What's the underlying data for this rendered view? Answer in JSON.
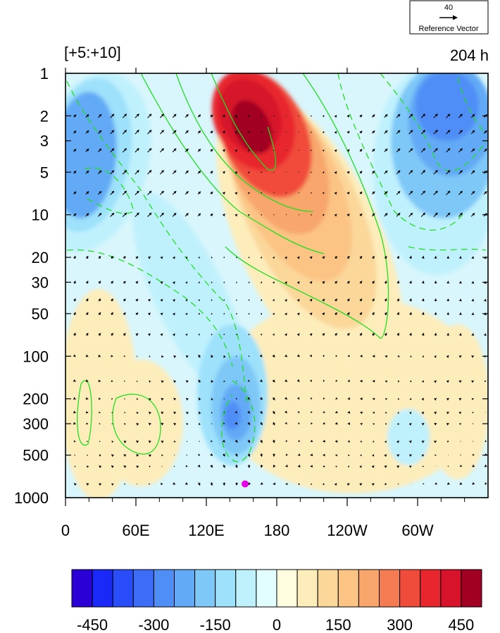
{
  "header": {
    "left_label": "[+5:+10]",
    "right_label": "204 h"
  },
  "reference_vector": {
    "value": "40",
    "label": "Reference Vector"
  },
  "chart_data": {
    "type": "heatmap",
    "title": "",
    "xlabel": "",
    "ylabel": "",
    "x_ticks": [
      {
        "lon": 0,
        "label": "0"
      },
      {
        "lon": 60,
        "label": "60E"
      },
      {
        "lon": 120,
        "label": "120E"
      },
      {
        "lon": 180,
        "label": "180"
      },
      {
        "lon": 240,
        "label": "120W"
      },
      {
        "lon": 300,
        "label": "60W"
      }
    ],
    "xlim": [
      0,
      360
    ],
    "y_ticks": [
      {
        "p": 1,
        "label": "1"
      },
      {
        "p": 2,
        "label": "2"
      },
      {
        "p": 3,
        "label": "3"
      },
      {
        "p": 5,
        "label": "5"
      },
      {
        "p": 10,
        "label": "10"
      },
      {
        "p": 20,
        "label": "20"
      },
      {
        "p": 30,
        "label": "30"
      },
      {
        "p": 50,
        "label": "50"
      },
      {
        "p": 100,
        "label": "100"
      },
      {
        "p": 200,
        "label": "200"
      },
      {
        "p": 300,
        "label": "300"
      },
      {
        "p": 500,
        "label": "500"
      },
      {
        "p": 1000,
        "label": "1000"
      }
    ],
    "ylim": [
      1000,
      1
    ],
    "y_scale": "log",
    "colorbar": {
      "colors": [
        "#2b00d6",
        "#1a29f7",
        "#2a4dfa",
        "#3d6cf7",
        "#4f8ef6",
        "#62aaf5",
        "#7ec8f8",
        "#9de1fb",
        "#bff1fd",
        "#e2fdfe",
        "#fefde0",
        "#fdedbb",
        "#fbd79a",
        "#fbc485",
        "#f8a66c",
        "#f57b52",
        "#f04c3b",
        "#e8262e",
        "#d6132a",
        "#a10023"
      ],
      "labels": [
        "-450",
        "-300",
        "-150",
        "0",
        "150",
        "300",
        "450"
      ],
      "label_values": [
        -450,
        -300,
        -150,
        0,
        150,
        300,
        450
      ],
      "levels": [
        -500,
        -450,
        -400,
        -350,
        -300,
        -250,
        -200,
        -150,
        -100,
        -50,
        0,
        50,
        100,
        150,
        200,
        250,
        300,
        350,
        400,
        450,
        500
      ]
    },
    "field_features": [
      {
        "name": "stratospheric positive center",
        "lon": 165,
        "p": 4,
        "value": 480
      },
      {
        "name": "stratospheric negative center",
        "lon": 320,
        "p": 2,
        "value": -320
      },
      {
        "name": "western negative center",
        "lon": 15,
        "p": 5,
        "value": -260
      },
      {
        "name": "tropospheric negative center",
        "lon": 145,
        "p": 330,
        "value": -280
      },
      {
        "name": "tropospheric positive center",
        "lon": 15,
        "p": 300,
        "value": 130
      },
      {
        "name": "eastern positive center",
        "lon": 345,
        "p": 250,
        "value": 130
      }
    ],
    "marker": {
      "lon": 153,
      "p": 800,
      "color": "#e600e6"
    },
    "contour_color": "#22dd22"
  }
}
